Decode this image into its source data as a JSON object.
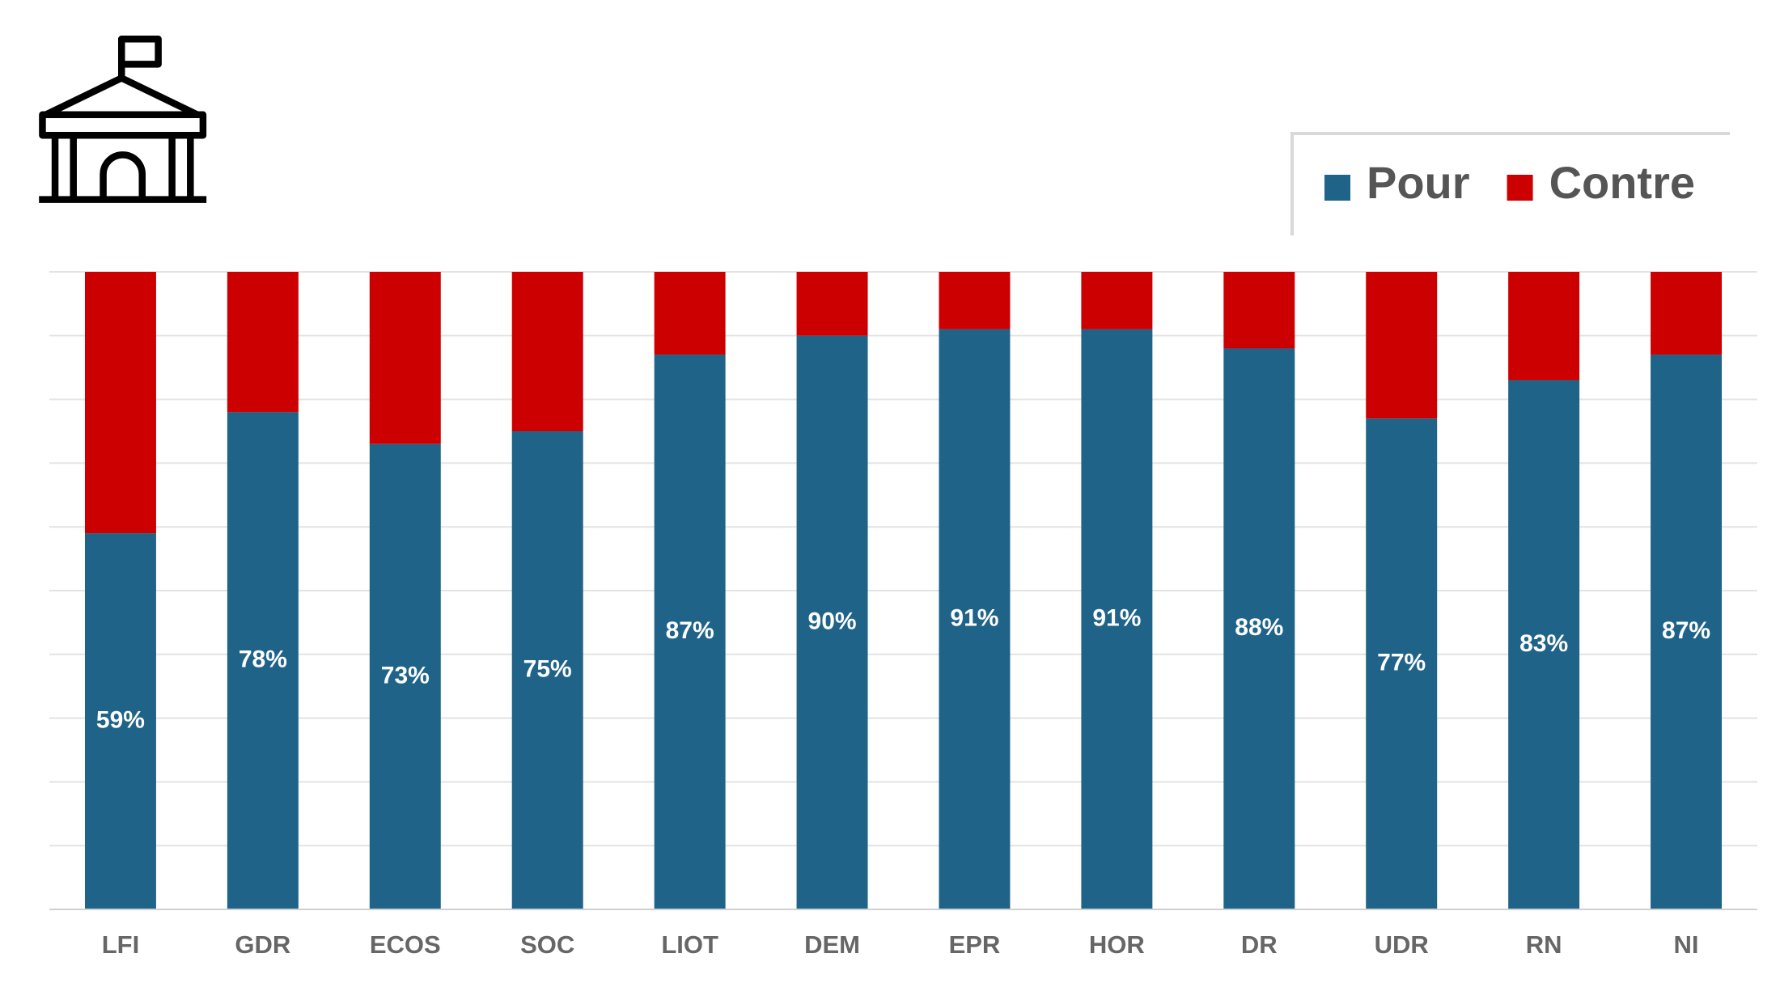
{
  "chart_data": {
    "type": "stacked_bar",
    "categories": [
      "LFI",
      "GDR",
      "ECOS",
      "SOC",
      "LIOT",
      "DEM",
      "EPR",
      "HOR",
      "DR",
      "UDR",
      "RN",
      "NI"
    ],
    "series": [
      {
        "name": "Pour",
        "color": "#1f6389",
        "values": [
          59,
          78,
          73,
          75,
          87,
          90,
          91,
          91,
          88,
          77,
          83,
          87
        ],
        "value_labels": [
          "59%",
          "78%",
          "73%",
          "75%",
          "87%",
          "90%",
          "91%",
          "91%",
          "88%",
          "77%",
          "83%",
          "87%"
        ]
      },
      {
        "name": "Contre",
        "color": "#cc0000",
        "values": [
          41,
          22,
          27,
          25,
          13,
          10,
          9,
          9,
          12,
          23,
          17,
          13
        ]
      }
    ],
    "ylim": [
      0,
      100
    ],
    "yticks": [
      0,
      10,
      20,
      30,
      40,
      50,
      60,
      70,
      80,
      90,
      100
    ],
    "grid": true,
    "legend": "top-right"
  }
}
